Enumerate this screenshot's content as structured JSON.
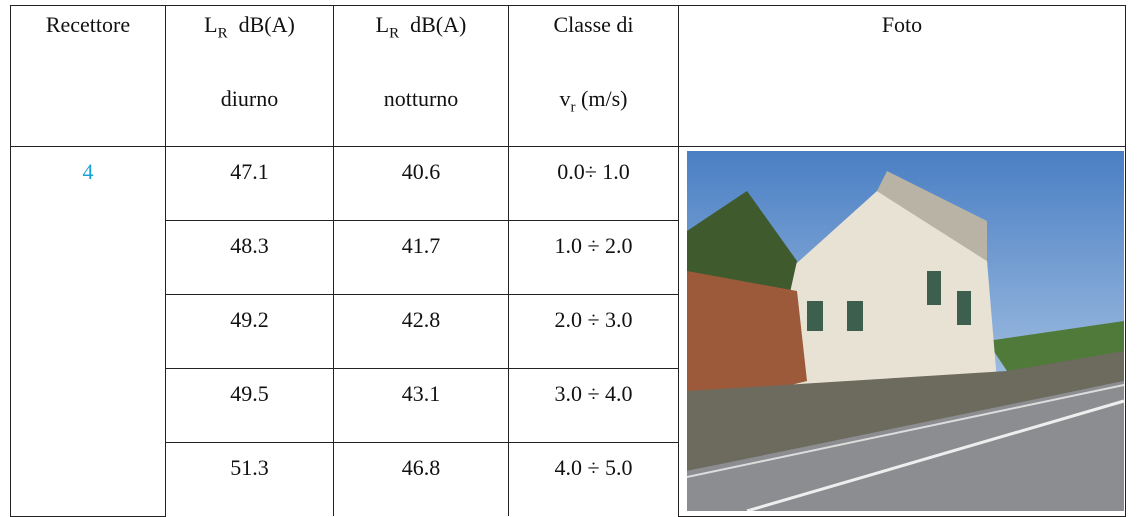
{
  "header": {
    "receptor": "Recettore",
    "day": {
      "symbol": "L",
      "sub": "R",
      "unit": "dB(A)",
      "period": "diurno"
    },
    "night": {
      "symbol": "L",
      "sub": "R",
      "unit": "dB(A)",
      "period": "notturno"
    },
    "class": {
      "line1": "Classe di",
      "symbol": "v",
      "sub": "r",
      "unit": "(m/s)"
    },
    "photo": "Foto"
  },
  "receptor": 4,
  "rows": [
    [
      47.1,
      40.6,
      "0.0÷ 1.0"
    ],
    [
      48.3,
      41.7,
      "1.0 ÷ 2.0"
    ],
    [
      49.2,
      42.8,
      "2.0 ÷ 3.0"
    ],
    [
      49.5,
      43.1,
      "3.0 ÷ 4.0"
    ],
    [
      51.3,
      46.8,
      "4.0 ÷ 5.0"
    ]
  ]
}
